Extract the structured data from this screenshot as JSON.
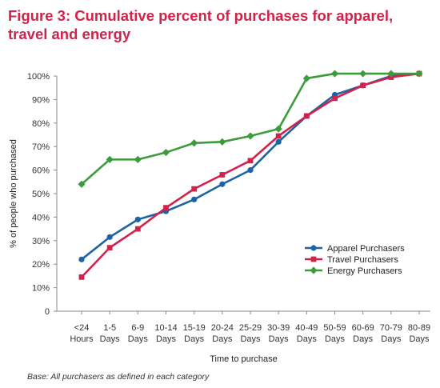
{
  "figure": {
    "title": "Figure 3: Cumulative percent of purchases for apparel, travel and energy",
    "note": "Base: All purchasers as defined in each category"
  },
  "chart_data": {
    "type": "line",
    "xlabel": "Time to purchase",
    "ylabel": "% of people who purchased",
    "ylim": [
      0,
      100
    ],
    "yticks": [
      "0",
      "10%",
      "20%",
      "30%",
      "40%",
      "50%",
      "60%",
      "70%",
      "80%",
      "90%",
      "100%"
    ],
    "categories": [
      [
        "<24",
        "Hours"
      ],
      [
        "1-5",
        "Days"
      ],
      [
        "6-9",
        "Days"
      ],
      [
        "10-14",
        "Days"
      ],
      [
        "15-19",
        "Days"
      ],
      [
        "20-24",
        "Days"
      ],
      [
        "25-29",
        "Days"
      ],
      [
        "30-39",
        "Days"
      ],
      [
        "40-49",
        "Days"
      ],
      [
        "50-59",
        "Days"
      ],
      [
        "60-69",
        "Days"
      ],
      [
        "70-79",
        "Days"
      ],
      [
        "80-89",
        "Days"
      ]
    ],
    "series": [
      {
        "name": "Apparel Purchasers",
        "color": "#1c64a6",
        "marker": "circle",
        "values": [
          22,
          31.5,
          39,
          42.5,
          47.5,
          54,
          60,
          72,
          83,
          92,
          96,
          100,
          101
        ]
      },
      {
        "name": "Travel Purchasers",
        "color": "#d1224b",
        "marker": "square",
        "values": [
          14.5,
          27,
          35,
          44,
          52,
          58,
          64,
          74.5,
          83,
          90.5,
          96,
          99.5,
          101
        ]
      },
      {
        "name": "Energy Purchasers",
        "color": "#3d9c3a",
        "marker": "diamond",
        "values": [
          54,
          64.5,
          64.5,
          67.5,
          71.5,
          72,
          74.5,
          77.5,
          99,
          101,
          101,
          101,
          101
        ]
      }
    ],
    "legend": "right",
    "grid": false
  }
}
